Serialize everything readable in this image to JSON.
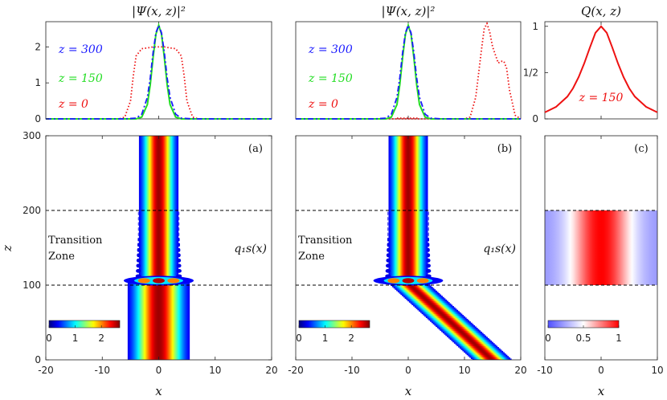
{
  "chart_data": [
    {
      "id": "top-a",
      "type": "line",
      "title": "|Ψ(x, z)|²",
      "xlim": [
        -20,
        20
      ],
      "ylim": [
        0,
        2.7
      ],
      "yticks": [
        "0",
        "1",
        "2"
      ],
      "series": [
        {
          "name": "z = 300",
          "color": "#1a1aff",
          "style": "dashdot",
          "x": [
            -6,
            -4,
            -3,
            -2,
            -1.5,
            -1,
            -0.5,
            0,
            0.5,
            1,
            1.5,
            2,
            3,
            4,
            6
          ],
          "y": [
            0,
            0.02,
            0.13,
            0.6,
            1.14,
            1.84,
            2.39,
            2.6,
            2.39,
            1.84,
            1.14,
            0.6,
            0.13,
            0.02,
            0
          ]
        },
        {
          "name": "z = 150",
          "color": "#22dd22",
          "style": "solid",
          "x": [
            -4,
            -3,
            -2,
            -1.5,
            -1,
            -0.5,
            0,
            0.5,
            1,
            1.5,
            2,
            3,
            4
          ],
          "y": [
            0,
            0.05,
            0.4,
            0.95,
            1.7,
            2.35,
            2.6,
            2.35,
            1.7,
            0.95,
            0.4,
            0.05,
            0
          ]
        },
        {
          "name": "z = 0",
          "color": "#ee1111",
          "style": "dotted",
          "x": [
            -7,
            -6,
            -5,
            -4.5,
            -4,
            -3,
            -2,
            -1,
            0,
            1,
            2,
            3,
            4,
            4.5,
            5,
            6,
            7
          ],
          "y": [
            0,
            0.05,
            0.5,
            1.2,
            1.75,
            1.95,
            1.97,
            2.0,
            2.0,
            2.0,
            1.97,
            1.95,
            1.75,
            1.2,
            0.5,
            0.05,
            0
          ]
        }
      ]
    },
    {
      "id": "top-b",
      "type": "line",
      "title": "|Ψ(x, z)|²",
      "xlim": [
        -20,
        20
      ],
      "ylim": [
        0,
        2.7
      ],
      "series": [
        {
          "name": "z = 300",
          "color": "#1a1aff",
          "style": "dashdot",
          "x": [
            -6,
            -4,
            -3,
            -2,
            -1.5,
            -1,
            -0.5,
            0,
            0.5,
            1,
            1.5,
            2,
            3,
            4,
            6
          ],
          "y": [
            0,
            0.02,
            0.13,
            0.6,
            1.14,
            1.84,
            2.39,
            2.6,
            2.39,
            1.84,
            1.14,
            0.6,
            0.13,
            0.02,
            0
          ]
        },
        {
          "name": "z = 150",
          "color": "#22dd22",
          "style": "solid",
          "x": [
            -4,
            -3,
            -2,
            -1.5,
            -1,
            -0.5,
            0,
            0.5,
            1,
            1.5,
            2,
            3,
            4
          ],
          "y": [
            0,
            0.05,
            0.4,
            0.95,
            1.7,
            2.35,
            2.6,
            2.35,
            1.7,
            0.95,
            0.4,
            0.05,
            0
          ]
        },
        {
          "name": "z = 0",
          "color": "#ee1111",
          "style": "dotted",
          "x": [
            10,
            11,
            12,
            13,
            13.5,
            14,
            14.5,
            15,
            16,
            16.5,
            17,
            17.5,
            18,
            19,
            20
          ],
          "y": [
            0,
            0.05,
            0.6,
            1.9,
            2.5,
            2.65,
            2.4,
            2.0,
            1.55,
            1.6,
            1.6,
            1.4,
            0.8,
            0.1,
            0
          ]
        }
      ],
      "extra_series_color": "#ee1111",
      "extra_series_x": [
        -2,
        2
      ],
      "extra_series_y": [
        0,
        0
      ]
    },
    {
      "id": "top-c",
      "type": "line",
      "title": "Q(x, z)",
      "xlim": [
        -10,
        10
      ],
      "ylim": [
        0,
        1.05
      ],
      "yticks": [
        "0",
        "1/2",
        "1"
      ],
      "annotation": "z = 150",
      "series": [
        {
          "name": "z = 150",
          "color": "#ee1111",
          "style": "solid",
          "x": [
            -10,
            -8,
            -6,
            -5,
            -4,
            -3,
            -2,
            -1,
            0,
            1,
            2,
            3,
            4,
            5,
            6,
            8,
            10
          ],
          "y": [
            0.07,
            0.13,
            0.24,
            0.33,
            0.45,
            0.6,
            0.77,
            0.93,
            1.0,
            0.93,
            0.77,
            0.6,
            0.45,
            0.33,
            0.24,
            0.13,
            0.07
          ]
        }
      ]
    },
    {
      "id": "bottom-a",
      "type": "heatmap",
      "label": "(a)",
      "xlim": [
        -20,
        20
      ],
      "ylim": [
        0,
        300
      ],
      "xticks": [
        "-20",
        "-10",
        "0",
        "10",
        "20"
      ],
      "yticks": [
        "0",
        "100",
        "200",
        "300"
      ],
      "xlabel": "x",
      "ylabel": "z",
      "colorbar": {
        "ticks": [
          "0",
          "1",
          "2"
        ],
        "range": [
          0,
          2.7
        ]
      },
      "dashed_lines_z": [
        100,
        200
      ],
      "annotations": [
        "Transition",
        "Zone",
        "q₁s(x)"
      ],
      "beam": {
        "lower_z": [
          0,
          100
        ],
        "lower_center": 0,
        "lower_halfwidth": 5.5,
        "upper_center": 0,
        "upper_halfwidth": 3.5
      }
    },
    {
      "id": "bottom-b",
      "type": "heatmap",
      "label": "(b)",
      "xlim": [
        -20,
        20
      ],
      "ylim": [
        0,
        300
      ],
      "xticks": [
        "-20",
        "-10",
        "0",
        "10",
        "20"
      ],
      "xlabel": "x",
      "colorbar": {
        "ticks": [
          "0",
          "1",
          "2"
        ],
        "range": [
          0,
          2.7
        ]
      },
      "dashed_lines_z": [
        100,
        200
      ],
      "annotations": [
        "Transition",
        "Zone",
        "q₁s(x)"
      ],
      "beam": {
        "lower_z": [
          0,
          100
        ],
        "lower_center_start": 15,
        "lower_center_end": 0,
        "lower_halfwidth": 3.5,
        "upper_center": 0,
        "upper_halfwidth": 3.5
      }
    },
    {
      "id": "bottom-c",
      "type": "heatmap",
      "label": "(c)",
      "xlim": [
        -10,
        10
      ],
      "ylim": [
        0,
        300
      ],
      "xticks": [
        "-10",
        "0",
        "10"
      ],
      "xlabel": "x",
      "colorbar": {
        "ticks": [
          "0",
          "0.5",
          "1"
        ],
        "range": [
          0,
          1
        ]
      },
      "dashed_lines_z": [
        100,
        200
      ],
      "band_z": [
        100,
        200
      ]
    }
  ]
}
